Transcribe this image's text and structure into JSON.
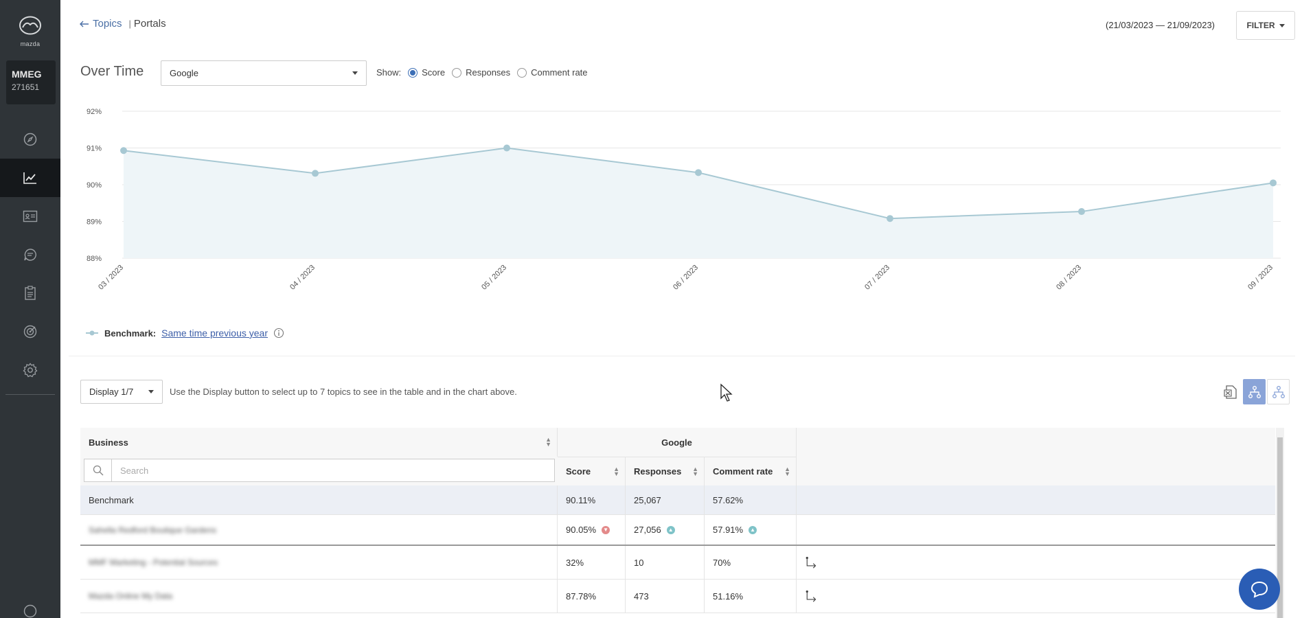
{
  "brand": {
    "logo_text": "mazda"
  },
  "account": {
    "code": "MMEG",
    "number": "271651"
  },
  "nav": [
    {
      "icon": "compass-icon",
      "active": false
    },
    {
      "icon": "trend-chart-icon",
      "active": true
    },
    {
      "icon": "id-card-icon",
      "active": false
    },
    {
      "icon": "chat-bubble-icon",
      "active": false
    },
    {
      "icon": "clipboard-icon",
      "active": false
    },
    {
      "icon": "target-icon",
      "active": false
    },
    {
      "icon": "gear-icon",
      "active": false
    }
  ],
  "header": {
    "back_label": "Topics",
    "separator": "|",
    "current": "Portals",
    "date_range": "(21/03/2023 — 21/09/2023)",
    "filter_label": "FILTER"
  },
  "controls": {
    "title": "Over Time",
    "source_selected": "Google",
    "show_label": "Show:",
    "options": [
      "Score",
      "Responses",
      "Comment rate"
    ],
    "selected_option": "Score"
  },
  "chart_data": {
    "type": "area",
    "categories": [
      "03 / 2023",
      "04 / 2023",
      "05 / 2023",
      "06 / 2023",
      "07 / 2023",
      "08 / 2023",
      "09 / 2023"
    ],
    "series": [
      {
        "values": [
          90.93,
          90.31,
          91.0,
          90.33,
          89.08,
          89.27,
          90.05
        ]
      }
    ],
    "ylim": [
      88,
      92
    ],
    "yticks": [
      88,
      89,
      90,
      91,
      92
    ],
    "ytick_labels": [
      "88%",
      "89%",
      "90%",
      "91%",
      "92%"
    ],
    "grid": true,
    "colors": {
      "line": "#a7c8d3",
      "fill": "#eef5f8",
      "grid": "#e6e6e6"
    }
  },
  "benchmark": {
    "label": "Benchmark:",
    "link": "Same time previous year"
  },
  "display": {
    "button_label": "Display 1/7",
    "hint": "Use the Display button to select up to 7 topics to see in the table and in the chart above."
  },
  "table": {
    "business_header": "Business",
    "group_header": "Google",
    "columns": [
      "Score",
      "Responses",
      "Comment rate"
    ],
    "search_placeholder": "Search",
    "benchmark_row": {
      "name": "Benchmark",
      "score": "90.11%",
      "responses": "25,067",
      "comment_rate": "57.62%"
    },
    "rows": [
      {
        "name": "Sahella Redford Boutique Gardens",
        "score": "90.05%",
        "responses": "27,056",
        "comment_rate": "57.91%"
      },
      {
        "name": "MMF Marketing - Potential Sources",
        "score": "32%",
        "responses": "10",
        "comment_rate": "70%"
      },
      {
        "name": "Mazda Online My Data",
        "score": "87.78%",
        "responses": "473",
        "comment_rate": "51.16%"
      }
    ]
  }
}
